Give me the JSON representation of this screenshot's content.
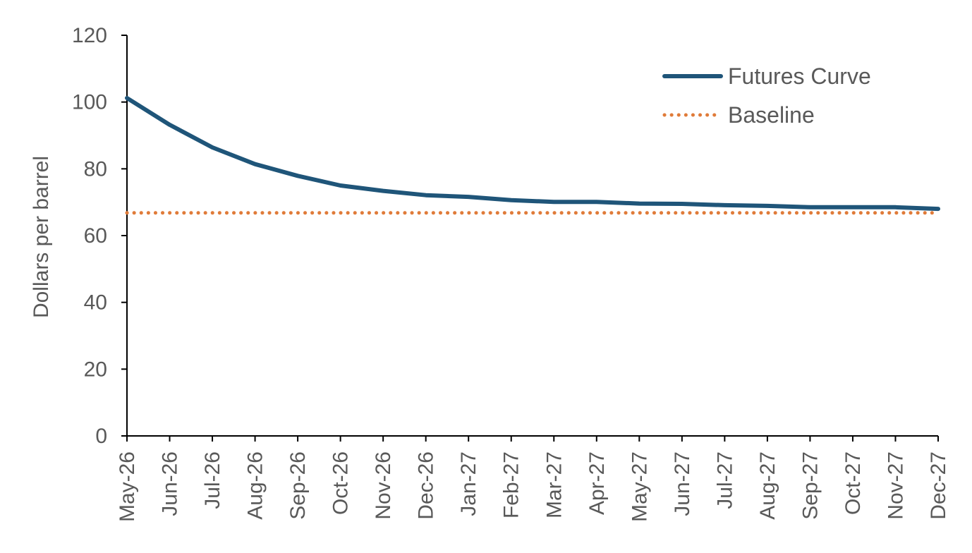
{
  "chart_data": {
    "type": "line",
    "title": "",
    "xlabel": "",
    "ylabel": "Dollars per barrel",
    "ylim": [
      0,
      120
    ],
    "yticks": [
      "0",
      "20",
      "40",
      "60",
      "80",
      "100",
      "120"
    ],
    "categories": [
      "May-26",
      "Jun-26",
      "Jul-26",
      "Aug-26",
      "Sep-26",
      "Oct-26",
      "Nov-26",
      "Dec-26",
      "Jan-27",
      "Feb-27",
      "Mar-27",
      "Apr-27",
      "May-27",
      "Jun-27",
      "Jul-27",
      "Aug-27",
      "Sep-27",
      "Oct-27",
      "Nov-27",
      "Dec-27"
    ],
    "series": [
      {
        "name": "Futures Curve",
        "style": "solid",
        "color": "#1F5579",
        "values": [
          101.2,
          93.2,
          86.4,
          81.4,
          77.9,
          75.0,
          73.4,
          72.1,
          71.6,
          70.6,
          70.1,
          70.1,
          69.6,
          69.5,
          69.1,
          68.9,
          68.5,
          68.5,
          68.5,
          68.0
        ]
      },
      {
        "name": "Baseline",
        "style": "dotted",
        "color": "#E07B39",
        "values": [
          66.8,
          66.8,
          66.8,
          66.8,
          66.8,
          66.8,
          66.8,
          66.8,
          66.8,
          66.8,
          66.8,
          66.8,
          66.8,
          66.8,
          66.8,
          66.8,
          66.8,
          66.8,
          66.8,
          66.8
        ]
      }
    ],
    "grid": false,
    "legend_position": "top-right"
  }
}
